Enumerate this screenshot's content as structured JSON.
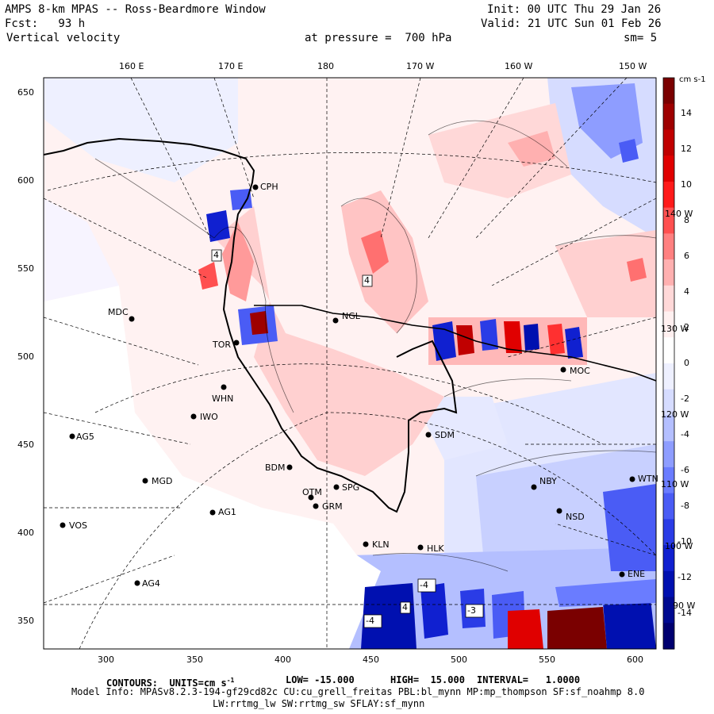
{
  "header": {
    "title": "AMPS 8-km MPAS -- Ross-Beardmore Window",
    "init": "Init: 00 UTC Thu 29 Jan 26",
    "fcst": "Fcst:   93 h",
    "valid": "Valid: 21 UTC Sun 01 Feb 26",
    "field": "Vertical velocity",
    "pressure": "at pressure =  700 hPa",
    "smooth": "sm= 5"
  },
  "axes": {
    "top_ticks": [
      "160 E",
      "170 E",
      "180",
      "170 W",
      "160 W",
      "150 W"
    ],
    "left_ticks": [
      "650",
      "600",
      "550",
      "500",
      "450",
      "400",
      "350"
    ],
    "bottom_ticks": [
      "300",
      "350",
      "400",
      "450",
      "500",
      "550",
      "600"
    ]
  },
  "colorbar": {
    "unit": "cm s-1",
    "labels": [
      "14",
      "12",
      "10",
      "8",
      "6",
      "4",
      "2",
      "0",
      "-2",
      "-4",
      "-6",
      "-8",
      "-10",
      "-12",
      "-14"
    ],
    "colors": [
      "#7a0000",
      "#9e0000",
      "#c00000",
      "#e00000",
      "#ff1a1a",
      "#ff5050",
      "#ff8080",
      "#ffb0b0",
      "#ffd8d8",
      "#fff0f0",
      "#ffffff",
      "#eef0ff",
      "#d6dcff",
      "#b4bfff",
      "#8e9dff",
      "#6a7cff",
      "#4a5cf5",
      "#2a3ce6",
      "#1020d0",
      "#0010b0",
      "#000a90",
      "#000070"
    ]
  },
  "lon_labels_right": [
    "140 W",
    "130 W",
    "120 W",
    "110 W",
    "100 W",
    "90 W"
  ],
  "stations": [
    {
      "name": "CPH"
    },
    {
      "name": "MDC"
    },
    {
      "name": "NGL"
    },
    {
      "name": "TOR"
    },
    {
      "name": "MOC"
    },
    {
      "name": "WHN"
    },
    {
      "name": "IWO"
    },
    {
      "name": "AG5"
    },
    {
      "name": "SDM"
    },
    {
      "name": "BDM"
    },
    {
      "name": "MGD"
    },
    {
      "name": "OTM"
    },
    {
      "name": "SPG"
    },
    {
      "name": "NBY"
    },
    {
      "name": "WTN"
    },
    {
      "name": "GRM"
    },
    {
      "name": "AG1"
    },
    {
      "name": "NSD"
    },
    {
      "name": "VOS"
    },
    {
      "name": "KLN"
    },
    {
      "name": "HLK"
    },
    {
      "name": "AG4"
    },
    {
      "name": "ENE"
    }
  ],
  "contour_labels": [
    "4",
    "4",
    "-4",
    "4",
    "-4",
    "-3"
  ],
  "footer": {
    "contours": "CONTOURS:  UNITS=cm s",
    "contours_sup": "-1",
    "low": "LOW= -15.000",
    "high": "HIGH=  15.000",
    "interval": "INTERVAL=   1.0000",
    "model_info": "Model Info: MPASv8.2.3-194-gf29cd82c CU:cu_grell_freitas PBL:bl_mynn MP:mp_thompson SF:sf_noahmp 8.0",
    "model_info2": "LW:rrtmg_lw SW:rrtmg_sw SFLAY:sf_mynn"
  }
}
